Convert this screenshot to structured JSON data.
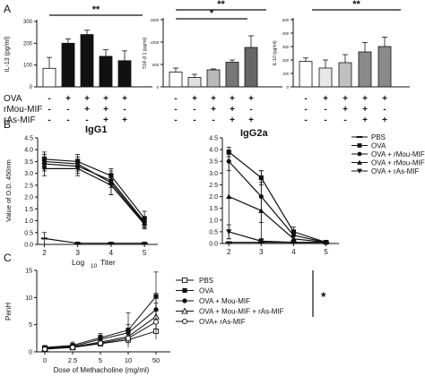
{
  "chart_data": [
    {
      "type": "bar",
      "panel": "A",
      "ylabel": "IL-13 (pg/ml)",
      "ylim": [
        0,
        300
      ],
      "yticks": [
        "0",
        "100",
        "200",
        "300"
      ],
      "values": [
        85,
        200,
        240,
        140,
        120
      ],
      "errors": [
        50,
        20,
        20,
        30,
        45
      ],
      "bar_colors": [
        "#ffffff",
        "#111111",
        "#111111",
        "#111111",
        "#111111"
      ],
      "significance": [
        "**"
      ]
    },
    {
      "type": "bar",
      "panel": "A",
      "ylabel": "TGF-β 1 (pg/ml)",
      "ylim": [
        0,
        1500
      ],
      "yticks": [
        "0",
        "500",
        "1000",
        "1500"
      ],
      "values": [
        330,
        210,
        380,
        550,
        880
      ],
      "errors": [
        90,
        70,
        20,
        50,
        260
      ],
      "bar_colors": [
        "#ffffff",
        "#e0e0e0",
        "#b8b8b8",
        "#777777",
        "#666666"
      ],
      "significance": [
        "*",
        "**"
      ]
    },
    {
      "type": "bar",
      "panel": "A",
      "ylabel": "IL-10 (pg/ml)",
      "ylim": [
        0,
        500
      ],
      "yticks": [
        "0",
        "100",
        "200",
        "300",
        "400",
        "500"
      ],
      "values": [
        190,
        140,
        180,
        260,
        300
      ],
      "errors": [
        25,
        60,
        60,
        70,
        70
      ],
      "bar_colors": [
        "#ffffff",
        "#e8e8e8",
        "#c0c0c0",
        "#8a8a8a",
        "#8a8a8a"
      ],
      "significance": [
        "**"
      ]
    },
    {
      "type": "table",
      "panel": "A",
      "rows": [
        {
          "label": "OVA",
          "signs": [
            "-",
            "+",
            "+",
            "+",
            "+"
          ]
        },
        {
          "label": "rMou-MIF",
          "signs": [
            "-",
            "-",
            "+",
            "+",
            "-"
          ]
        },
        {
          "label": "rAs-MIF",
          "signs": [
            "-",
            "-",
            "-",
            "+",
            "+"
          ]
        }
      ]
    },
    {
      "type": "line",
      "panel": "B",
      "title": "IgG1",
      "xlabel": "Log 10 Titer",
      "ylabel": "Value of O.D. 450nm",
      "x": [
        2,
        3,
        4,
        5
      ],
      "xlim": [
        1.8,
        5.4
      ],
      "ylim": [
        0,
        4.5
      ],
      "yticks": [
        "0.0",
        "0.5",
        "1.0",
        "1.5",
        "2.0",
        "2.5",
        "3.0",
        "3.5",
        "4.0",
        "4.5"
      ],
      "series": [
        {
          "name": "PBS",
          "values": [
            0.25,
            0.05,
            0.05,
            0.05
          ],
          "errors": [
            0.25,
            0.05,
            0.05,
            0.05
          ]
        },
        {
          "name": "OVA",
          "values": [
            3.6,
            3.5,
            2.9,
            1.1
          ],
          "errors": [
            0.3,
            0.3,
            0.3,
            0.3
          ]
        },
        {
          "name": "OVA + rMou-MIF",
          "values": [
            3.4,
            3.3,
            2.7,
            0.95
          ],
          "errors": [
            0.3,
            0.3,
            0.3,
            0.2
          ]
        },
        {
          "name": "OVA + rMou-MIF + rAs-MIF",
          "values": [
            3.5,
            3.4,
            2.6,
            0.9
          ],
          "errors": [
            0.3,
            0.3,
            0.5,
            0.2
          ]
        },
        {
          "name": "OVA + rAs-MIF",
          "values": [
            3.2,
            3.2,
            2.5,
            0.85
          ],
          "errors": [
            0.3,
            0.3,
            0.4,
            0.2
          ]
        }
      ]
    },
    {
      "type": "line",
      "panel": "B",
      "title": "IgG2a",
      "x": [
        2,
        3,
        4,
        5
      ],
      "xlim": [
        1.8,
        5.4
      ],
      "ylim": [
        0,
        4.5
      ],
      "yticks": [
        "0.0",
        "0.5",
        "1.0",
        "1.5",
        "2.0",
        "2.5",
        "3.0",
        "3.5",
        "4.0",
        "4.5"
      ],
      "series": [
        {
          "name": "PBS",
          "values": [
            0.05,
            0.05,
            0.05,
            0.05
          ],
          "errors": [
            0.03,
            0.03,
            0.03,
            0.03
          ]
        },
        {
          "name": "OVA",
          "values": [
            3.9,
            2.8,
            0.5,
            0.05
          ],
          "errors": [
            0.2,
            0.3,
            0.2,
            0.05
          ]
        },
        {
          "name": "OVA + rMou-MIF",
          "values": [
            3.5,
            2.0,
            0.35,
            0.05
          ],
          "errors": [
            0.4,
            1.1,
            0.2,
            0.05
          ]
        },
        {
          "name": "OVA + rMou-MIF + rAs-MIF",
          "values": [
            2.0,
            1.4,
            0.2,
            0.05
          ],
          "errors": [
            1.8,
            1.2,
            0.15,
            0.05
          ]
        },
        {
          "name": "OVA + rAs-MIF",
          "values": [
            0.5,
            0.1,
            0.05,
            0.05
          ],
          "errors": [
            0.3,
            0.1,
            0.05,
            0.05
          ]
        }
      ]
    },
    {
      "type": "line",
      "panel": "C",
      "xlabel": "Dose of Methacholine (mg/ml)",
      "ylabel": "PenH",
      "x": [
        "0",
        "2.5",
        "5",
        "10",
        "50"
      ],
      "ylim": [
        0,
        15
      ],
      "yticks": [
        "0",
        "5",
        "10",
        "15"
      ],
      "series": [
        {
          "name": "PBS",
          "values": [
            0.6,
            0.8,
            1.5,
            2.2,
            3.8
          ],
          "errors": [
            0.3,
            0.5,
            0.6,
            0.8,
            1.5
          ]
        },
        {
          "name": "OVA",
          "values": [
            0.8,
            1.2,
            2.6,
            4.0,
            10.2
          ],
          "errors": [
            0.3,
            0.6,
            0.8,
            3.2,
            4.5
          ]
        },
        {
          "name": "OVA + Mou-MIF",
          "values": [
            0.7,
            1.0,
            2.3,
            3.5,
            7.8
          ],
          "errors": [
            0.3,
            0.5,
            0.8,
            1.5,
            3.0
          ]
        },
        {
          "name": "OVA + Mou-MIF + rAs-MIF",
          "values": [
            0.6,
            0.9,
            1.8,
            2.8,
            6.5
          ],
          "errors": [
            0.3,
            0.5,
            0.7,
            1.2,
            2.5
          ]
        },
        {
          "name": "OVA+ rAs-MIF",
          "values": [
            0.5,
            0.8,
            1.6,
            2.5,
            5.5
          ],
          "errors": [
            0.3,
            0.4,
            0.6,
            1.0,
            2.0
          ]
        }
      ],
      "significance": [
        "*"
      ]
    }
  ],
  "labels": {
    "panel_a": "A",
    "panel_b": "B",
    "panel_c": "C",
    "xlabel_log": "Log",
    "xlabel_ten": "10",
    "xlabel_titer": "Titer"
  }
}
